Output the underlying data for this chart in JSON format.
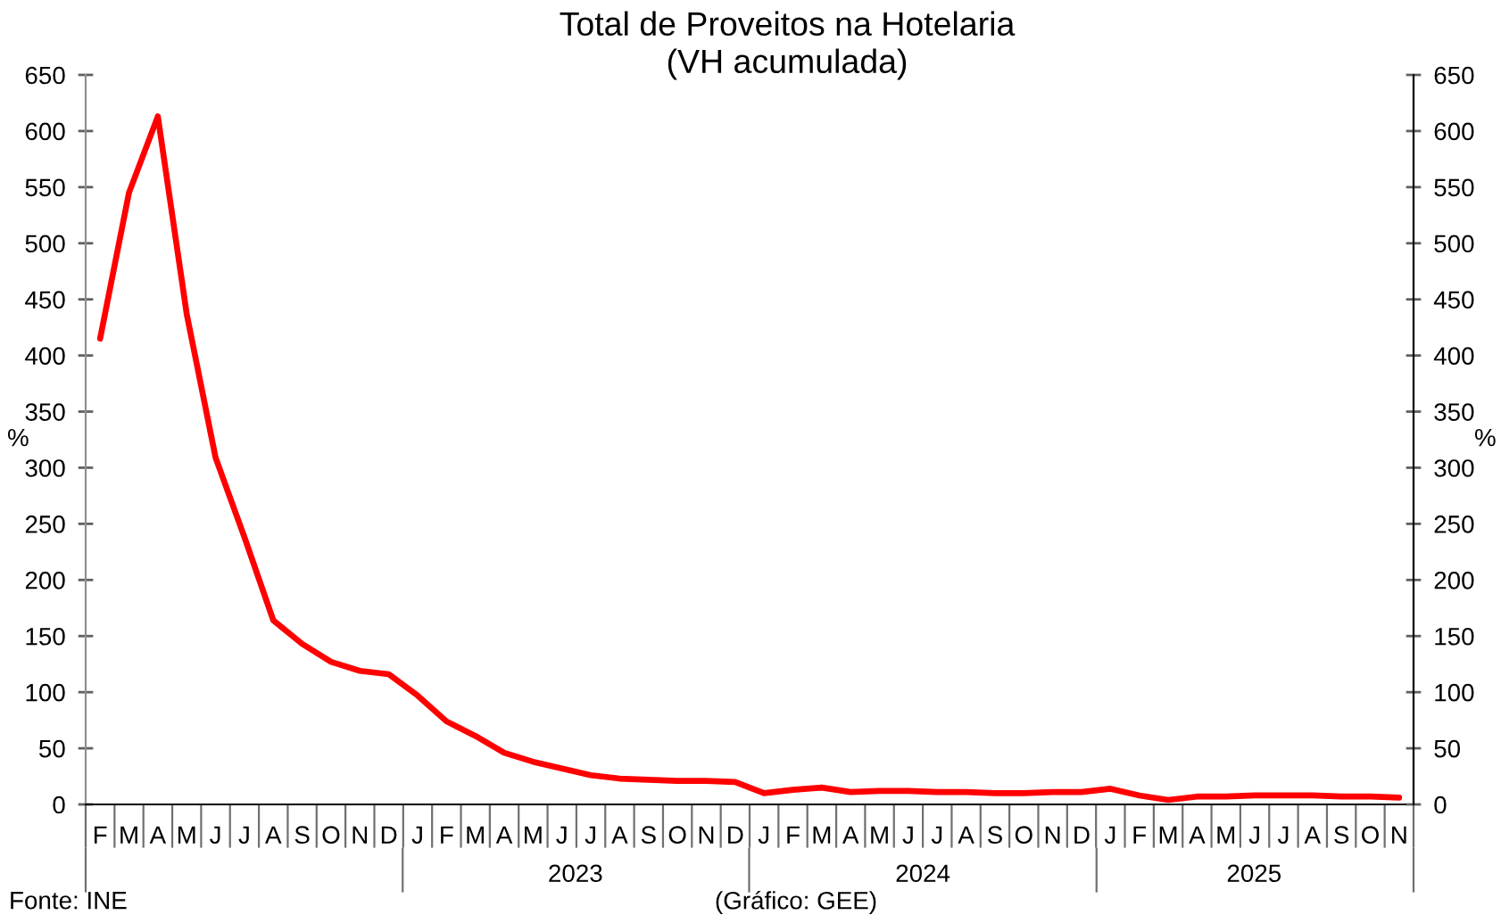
{
  "chart_data": {
    "type": "line",
    "title": "Total de Proveitos na Hotelaria",
    "subtitle": "(VH acumulada)",
    "ylabel": "%",
    "y2label": "%",
    "categories": [
      "F",
      "M",
      "A",
      "M",
      "J",
      "J",
      "A",
      "S",
      "O",
      "N",
      "D",
      "J",
      "F",
      "M",
      "A",
      "M",
      "J",
      "J",
      "A",
      "S",
      "O",
      "N",
      "D",
      "J",
      "F",
      "M",
      "A",
      "M",
      "J",
      "J",
      "A",
      "S",
      "O",
      "N",
      "D",
      "J",
      "F",
      "M",
      "A",
      "M",
      "J",
      "J",
      "A",
      "S",
      "O",
      "N"
    ],
    "series": [
      {
        "color": "#ff0000",
        "values": [
          415,
          545,
          613,
          437,
          309,
          238,
          164,
          143,
          127,
          119,
          116,
          97,
          74,
          61,
          46,
          38,
          32,
          26,
          23,
          22,
          21,
          21,
          20,
          10,
          13,
          15,
          11,
          12,
          12,
          11,
          11,
          10,
          10,
          11,
          11,
          14,
          8,
          4,
          7,
          7,
          8,
          8,
          8,
          7,
          7,
          6
        ]
      }
    ],
    "line_style": "solid",
    "x2lim": [
      "2022-02-01",
      "2025-12-01"
    ],
    "x2ticks": [
      {
        "value": "2022-02-01",
        "label": null
      },
      {
        "value": "2023-07-02",
        "label": "2023"
      },
      {
        "value": "2024-07-02",
        "label": "2024"
      },
      {
        "value": "2025-06-16",
        "label": "2025"
      },
      {
        "value": "2025-12-01",
        "label": null
      }
    ],
    "ylim": [
      0,
      650
    ],
    "yticks": [
      0,
      50,
      100,
      150,
      200,
      250,
      300,
      350,
      400,
      450,
      500,
      550,
      600,
      650
    ],
    "y2lim": [
      0,
      650
    ],
    "y2ticks": [
      0,
      50,
      100,
      150,
      200,
      250,
      300,
      350,
      400,
      450,
      500,
      550,
      600,
      650
    ],
    "annotations": [
      "Fonte: INE",
      "(Gráfico: GEE)"
    ]
  }
}
